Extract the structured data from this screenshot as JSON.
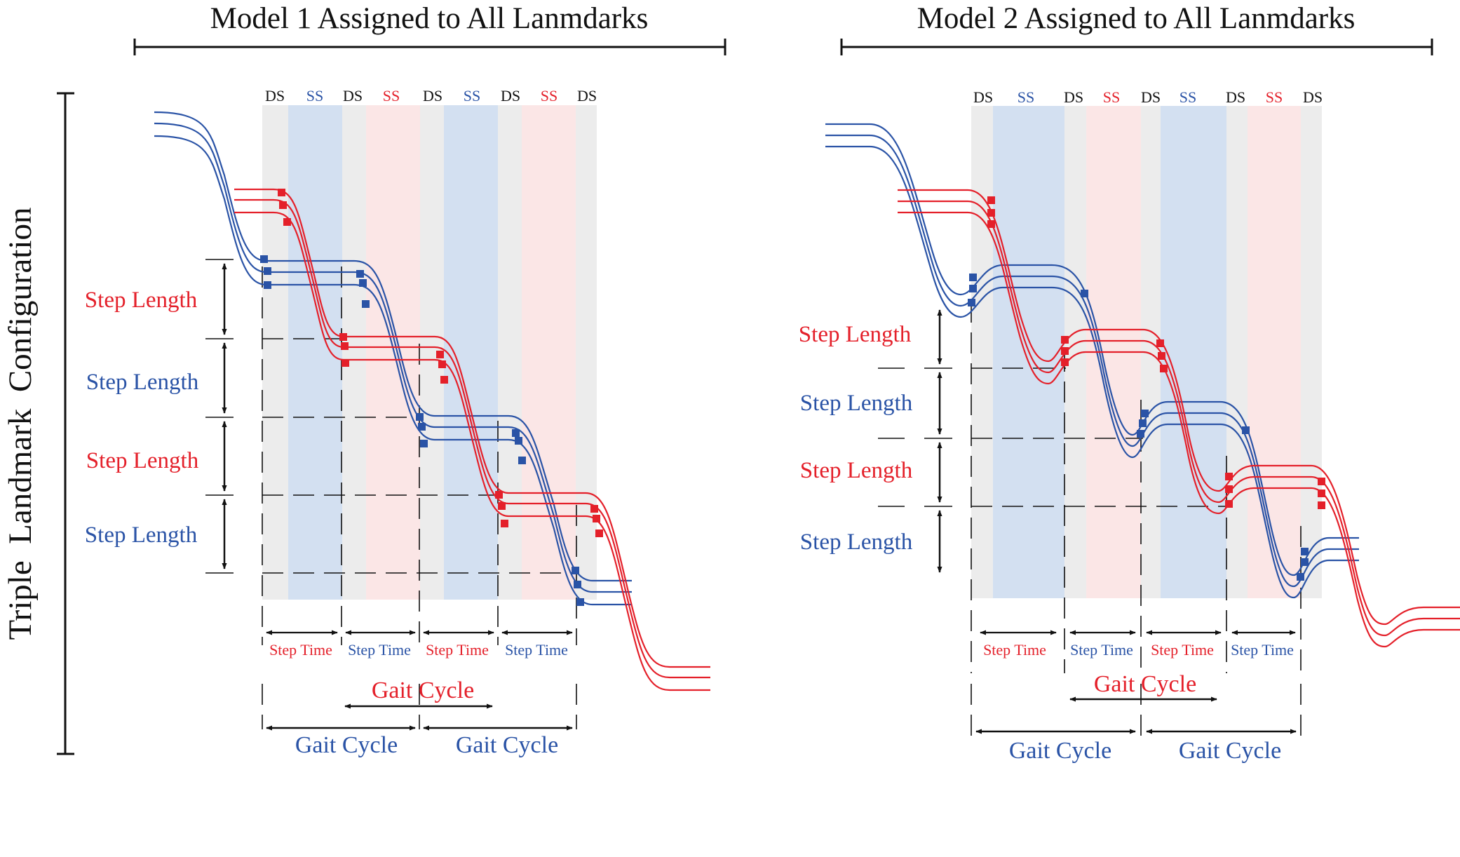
{
  "headers": {
    "left": "Model 1 Assigned to All Lanmdarks",
    "right": "Model 2 Assigned to All Lanmdarks"
  },
  "side_label": "Triple  Landmark  Configuration",
  "phase_labels": [
    "DS",
    "SS",
    "DS",
    "SS",
    "DS",
    "SS",
    "DS",
    "SS",
    "DS"
  ],
  "step_length_label": "Step Length",
  "step_time_label": "Step Time",
  "gait_cycle_label": "Gait Cycle",
  "colors": {
    "red": "#e4202a",
    "blue": "#2a53a6",
    "ds_band": "#ececec",
    "ss_blue_band": "#d3e0f1",
    "ss_red_band": "#fbe6e6",
    "ink": "#111111"
  }
}
